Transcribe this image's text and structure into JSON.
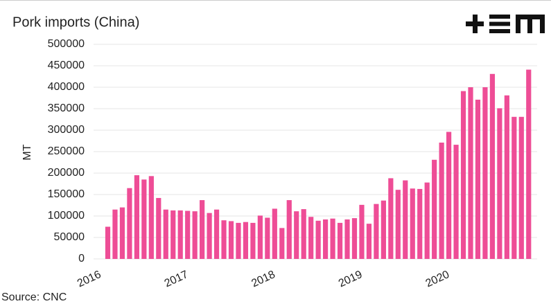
{
  "chart_data": {
    "type": "bar",
    "title": "Pork imports (China)",
    "y_label": "MT",
    "source": "Source: CNC",
    "categories": [
      "2016",
      null,
      null,
      null,
      null,
      null,
      null,
      null,
      null,
      null,
      null,
      null,
      "2017",
      null,
      null,
      null,
      null,
      null,
      null,
      null,
      null,
      null,
      null,
      null,
      "2018",
      null,
      null,
      null,
      null,
      null,
      null,
      null,
      null,
      null,
      null,
      null,
      "2019",
      null,
      null,
      null,
      null,
      null,
      null,
      null,
      null,
      null,
      null,
      null,
      "2020",
      null,
      null,
      null,
      null,
      null,
      null,
      null,
      null,
      null,
      null,
      null
    ],
    "values": [
      null,
      75000,
      115000,
      120000,
      165000,
      195000,
      185000,
      193000,
      142000,
      115000,
      113000,
      113000,
      112000,
      111000,
      137000,
      107000,
      115000,
      90000,
      88000,
      84000,
      86000,
      84000,
      101000,
      96000,
      117000,
      72000,
      137000,
      111000,
      116000,
      98000,
      89000,
      92000,
      94000,
      84000,
      92000,
      95000,
      126000,
      82000,
      128000,
      136000,
      188000,
      161000,
      183000,
      164000,
      163000,
      178000,
      231000,
      271000,
      296000,
      266000,
      391000,
      400000,
      371000,
      400000,
      431000,
      351000,
      381000,
      331000,
      331000,
      441000
    ],
    "color": "#ee4d96",
    "ylim": [
      0,
      500000
    ],
    "yticks": [
      0,
      50000,
      100000,
      150000,
      200000,
      250000,
      300000,
      350000,
      400000,
      450000,
      500000
    ],
    "grid": true
  }
}
